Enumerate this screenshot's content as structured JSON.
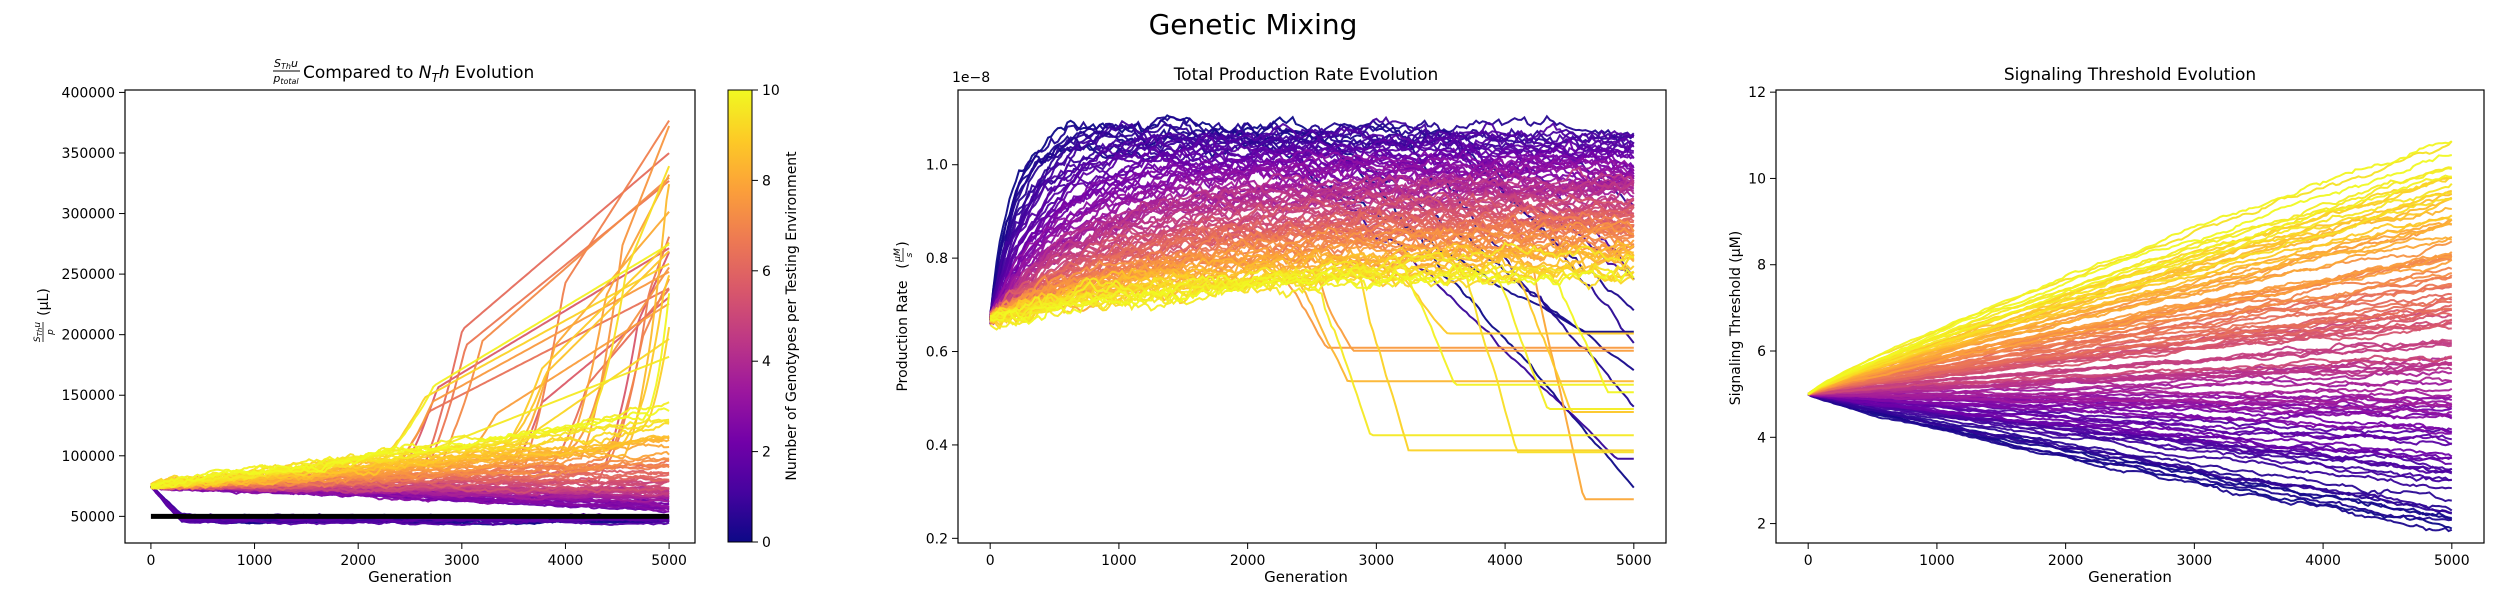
{
  "figure": {
    "suptitle": "Genetic Mixing"
  },
  "colormap": {
    "name": "plasma",
    "stops": [
      "#0d0887",
      "#46039f",
      "#7201a8",
      "#9c179e",
      "#bd3786",
      "#d8576b",
      "#ed7953",
      "#fb9f3a",
      "#fdca26",
      "#f0f921"
    ]
  },
  "chart_data": [
    {
      "type": "line",
      "title_prefix": "S",
      "title_prefix_sub": "Th",
      "title_prefix_rest": "u",
      "title_denominator": "p",
      "title_denominator_sub": "total",
      "title_suffix": " Compared to ",
      "title_math": "N",
      "title_math_sub": "T",
      "title_math_rest": "h",
      "title_end": " Evolution",
      "xlabel": "Generation",
      "ylabel_unit": "(μL)",
      "xlim": [
        -250,
        5250
      ],
      "ylim": [
        28000,
        402000
      ],
      "xticks": [
        "0",
        "1000",
        "2000",
        "3000",
        "4000",
        "5000"
      ],
      "yticks": [
        "50000",
        "100000",
        "150000",
        "200000",
        "250000",
        "300000",
        "350000",
        "400000"
      ],
      "reference_line": {
        "y": 50000,
        "x": [
          0,
          5000
        ],
        "color": "#000000"
      },
      "series_summary": {
        "start": 75000,
        "low_color_end": [
          45000,
          50000
        ],
        "high_color_end": [
          100000,
          140000
        ],
        "jumps_to": [
          180000,
          385000
        ]
      },
      "colorbar": {
        "label": "Number of Genotypes per Testing Environment",
        "range": [
          0,
          10
        ],
        "ticks": [
          "0",
          "2",
          "4",
          "6",
          "8",
          "10"
        ]
      }
    },
    {
      "type": "line",
      "title": "Total Production Rate Evolution",
      "xlabel": "Generation",
      "ylabel": "Production Rate",
      "ylabel_unit_num": "μM",
      "ylabel_unit_den": "s",
      "offset_text": "1e−8",
      "xlim": [
        -250,
        5250
      ],
      "ylim": [
        0.19,
        1.16
      ],
      "xticks": [
        "0",
        "1000",
        "2000",
        "3000",
        "4000",
        "5000"
      ],
      "yticks": [
        "0.2",
        "0.4",
        "0.6",
        "0.8",
        "1.0"
      ],
      "series_summary": {
        "start": 0.67,
        "low_color_peak": 1.1,
        "high_color_plateau": [
          0.7,
          0.85
        ],
        "collapse_range": [
          0.23,
          0.65
        ]
      }
    },
    {
      "type": "line",
      "title": "Signaling Threshold Evolution",
      "xlabel": "Generation",
      "ylabel": "Signaling Threshold",
      "ylabel_unit": "(μM)",
      "xlim": [
        -250,
        5250
      ],
      "ylim": [
        1.55,
        12.05
      ],
      "xticks": [
        "0",
        "1000",
        "2000",
        "3000",
        "4000",
        "5000"
      ],
      "yticks": [
        "2",
        "4",
        "6",
        "8",
        "10",
        "12"
      ],
      "series_summary": {
        "start": 5.0,
        "end_range": [
          2.2,
          11.6
        ]
      }
    }
  ]
}
